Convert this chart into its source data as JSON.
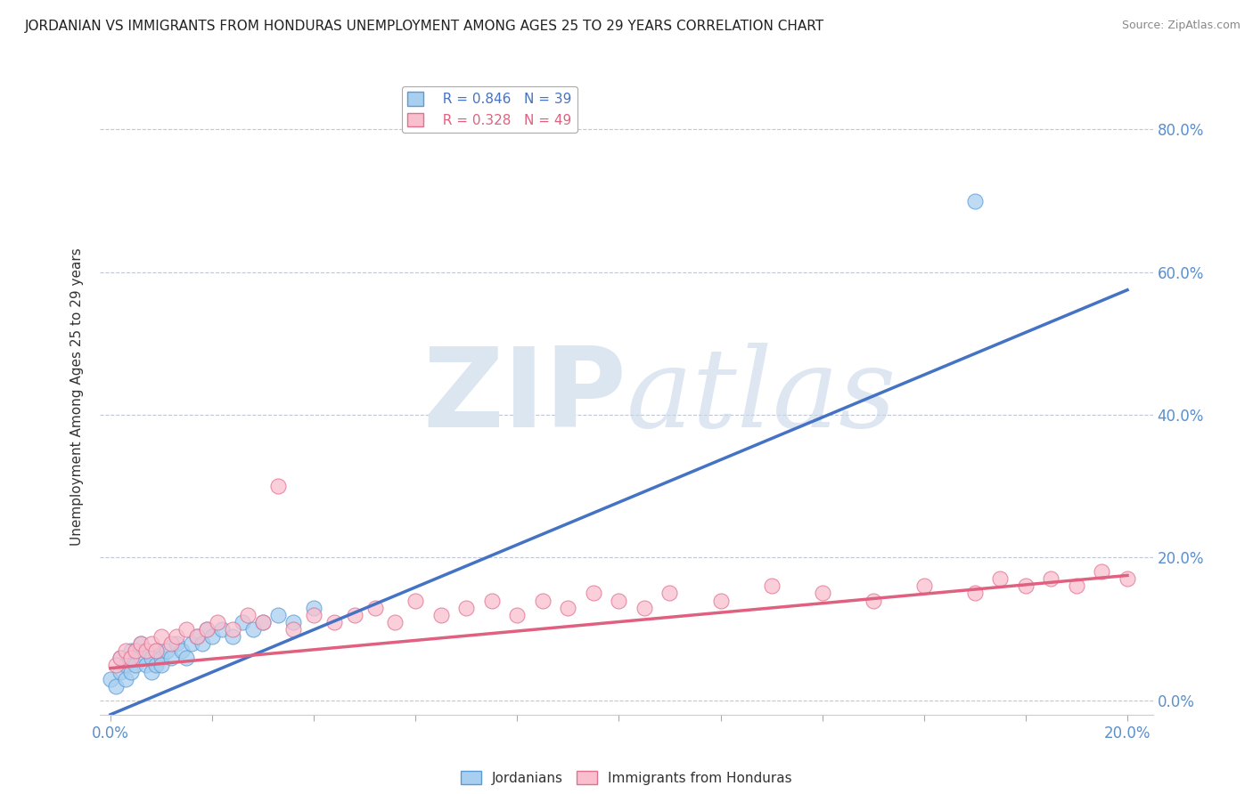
{
  "title": "JORDANIAN VS IMMIGRANTS FROM HONDURAS UNEMPLOYMENT AMONG AGES 25 TO 29 YEARS CORRELATION CHART",
  "source": "Source: ZipAtlas.com",
  "ylabel_label": "Unemployment Among Ages 25 to 29 years",
  "legend_entries": [
    "Jordanians",
    "Immigrants from Honduras"
  ],
  "blue_R": "0.846",
  "blue_N": "39",
  "pink_R": "0.328",
  "pink_N": "49",
  "blue_color": "#a8cff0",
  "pink_color": "#f9bfce",
  "blue_edge_color": "#5b9bd5",
  "pink_edge_color": "#e07090",
  "blue_line_color": "#4472c4",
  "pink_line_color": "#e06080",
  "watermark_zip": "ZIP",
  "watermark_atlas": "atlas",
  "watermark_color": "#dce6f0",
  "blue_scatter_x": [
    0.0,
    0.001,
    0.002,
    0.002,
    0.003,
    0.003,
    0.004,
    0.004,
    0.005,
    0.005,
    0.006,
    0.006,
    0.007,
    0.007,
    0.008,
    0.008,
    0.009,
    0.009,
    0.01,
    0.01,
    0.011,
    0.012,
    0.013,
    0.014,
    0.015,
    0.016,
    0.017,
    0.018,
    0.019,
    0.02,
    0.022,
    0.024,
    0.026,
    0.028,
    0.03,
    0.033,
    0.036,
    0.04,
    0.17
  ],
  "blue_scatter_y": [
    0.03,
    0.02,
    0.04,
    0.06,
    0.03,
    0.05,
    0.04,
    0.07,
    0.05,
    0.07,
    0.06,
    0.08,
    0.05,
    0.07,
    0.04,
    0.06,
    0.05,
    0.07,
    0.06,
    0.05,
    0.07,
    0.06,
    0.08,
    0.07,
    0.06,
    0.08,
    0.09,
    0.08,
    0.1,
    0.09,
    0.1,
    0.09,
    0.11,
    0.1,
    0.11,
    0.12,
    0.11,
    0.13,
    0.7
  ],
  "pink_scatter_x": [
    0.001,
    0.002,
    0.003,
    0.004,
    0.005,
    0.006,
    0.007,
    0.008,
    0.009,
    0.01,
    0.012,
    0.013,
    0.015,
    0.017,
    0.019,
    0.021,
    0.024,
    0.027,
    0.03,
    0.033,
    0.036,
    0.04,
    0.044,
    0.048,
    0.052,
    0.056,
    0.06,
    0.065,
    0.07,
    0.075,
    0.08,
    0.085,
    0.09,
    0.095,
    0.1,
    0.105,
    0.11,
    0.12,
    0.13,
    0.14,
    0.15,
    0.16,
    0.17,
    0.175,
    0.18,
    0.185,
    0.19,
    0.195,
    0.2
  ],
  "pink_scatter_y": [
    0.05,
    0.06,
    0.07,
    0.06,
    0.07,
    0.08,
    0.07,
    0.08,
    0.07,
    0.09,
    0.08,
    0.09,
    0.1,
    0.09,
    0.1,
    0.11,
    0.1,
    0.12,
    0.11,
    0.3,
    0.1,
    0.12,
    0.11,
    0.12,
    0.13,
    0.11,
    0.14,
    0.12,
    0.13,
    0.14,
    0.12,
    0.14,
    0.13,
    0.15,
    0.14,
    0.13,
    0.15,
    0.14,
    0.16,
    0.15,
    0.14,
    0.16,
    0.15,
    0.17,
    0.16,
    0.17,
    0.16,
    0.18,
    0.17
  ],
  "xlim": [
    -0.002,
    0.205
  ],
  "ylim": [
    -0.02,
    0.87
  ],
  "blue_line_x": [
    0.0,
    0.2
  ],
  "blue_line_y": [
    -0.02,
    0.575
  ],
  "pink_line_x": [
    0.0,
    0.2
  ],
  "pink_line_y": [
    0.045,
    0.175
  ],
  "ytick_vals": [
    0.0,
    0.2,
    0.4,
    0.6,
    0.8
  ],
  "xtick_positions": [
    0.0,
    0.02,
    0.04,
    0.06,
    0.08,
    0.1,
    0.12,
    0.14,
    0.16,
    0.18,
    0.2
  ],
  "x_label_only": [
    0.0,
    0.2
  ]
}
